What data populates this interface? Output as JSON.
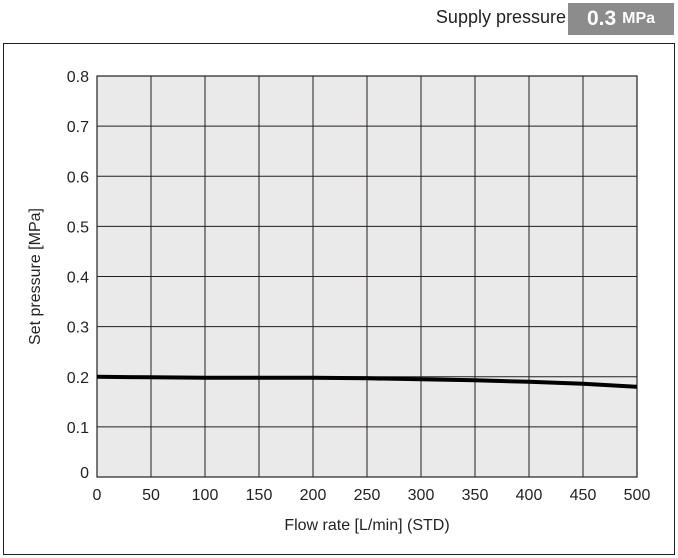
{
  "header": {
    "supply_label": "Supply pressure",
    "pressure_value": "0.3",
    "pressure_unit": "MPa"
  },
  "colors": {
    "plot_background": "#eaeaea",
    "grid": "#231f20",
    "line": "#000000",
    "badge": "#8c8c8c"
  },
  "chart_data": {
    "type": "line",
    "title": "",
    "xlabel": "Flow rate [L/min] (STD)",
    "ylabel": "Set pressure [MPa]",
    "xlim": [
      0,
      500
    ],
    "ylim": [
      0,
      0.8
    ],
    "xticks": [
      0,
      50,
      100,
      150,
      200,
      250,
      300,
      350,
      400,
      450,
      500
    ],
    "yticks": [
      0,
      0.1,
      0.2,
      0.3,
      0.4,
      0.5,
      0.6,
      0.7,
      0.8
    ],
    "xtick_labels": [
      "0",
      "50",
      "100",
      "150",
      "200",
      "250",
      "300",
      "350",
      "400",
      "450",
      "500"
    ],
    "ytick_labels": [
      "0",
      "0.1",
      "0.2",
      "0.3",
      "0.4",
      "0.5",
      "0.6",
      "0.7",
      "0.8"
    ],
    "grid": true,
    "series": [
      {
        "x": [
          0,
          50,
          100,
          150,
          200,
          250,
          300,
          350,
          400,
          450,
          500
        ],
        "y": [
          0.2,
          0.199,
          0.198,
          0.198,
          0.198,
          0.197,
          0.195,
          0.193,
          0.19,
          0.186,
          0.18
        ]
      }
    ]
  }
}
